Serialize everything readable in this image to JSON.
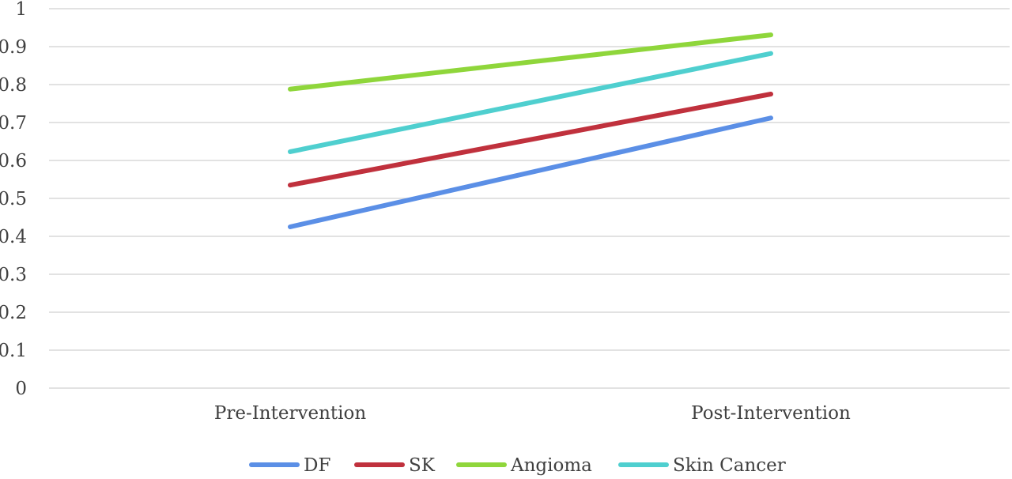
{
  "chart_data": {
    "type": "line",
    "title": "",
    "xlabel": "",
    "ylabel": "",
    "categories": [
      "Pre-Intervention",
      "Post-Intervention"
    ],
    "ylim": [
      0,
      1
    ],
    "yticks": [
      "0",
      "0.1",
      "0.2",
      "0.3",
      "0.4",
      "0.5",
      "0.6",
      "0.7",
      "0.8",
      "0.9",
      "1"
    ],
    "grid": true,
    "legend_position": "bottom",
    "series": [
      {
        "name": "DF",
        "values": [
          0.425,
          0.712
        ],
        "color": "#5b8fe6"
      },
      {
        "name": "SK",
        "values": [
          0.535,
          0.775
        ],
        "color": "#c0313d"
      },
      {
        "name": "Angioma",
        "values": [
          0.788,
          0.931
        ],
        "color": "#8fd63b"
      },
      {
        "name": "Skin Cancer",
        "values": [
          0.623,
          0.882
        ],
        "color": "#4fcfcf"
      }
    ]
  }
}
